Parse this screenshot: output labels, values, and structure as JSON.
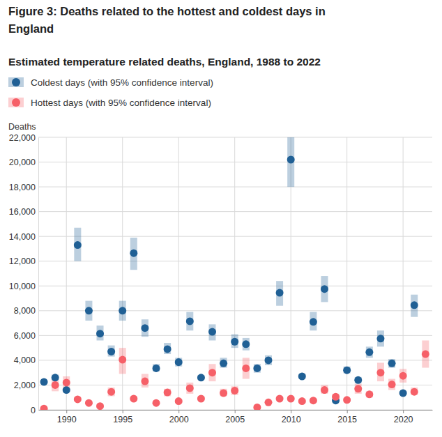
{
  "chart_data": {
    "type": "scatter",
    "title": "Figure 3: Deaths related to the hottest and coldest days in England",
    "subtitle": "Estimated temperature related deaths, England, 1988 to 2022",
    "y_label": "Deaths",
    "x": [
      1988,
      1989,
      1990,
      1991,
      1992,
      1993,
      1994,
      1995,
      1996,
      1997,
      1998,
      1999,
      2000,
      2001,
      2002,
      2003,
      2004,
      2005,
      2006,
      2007,
      2008,
      2009,
      2010,
      2011,
      2012,
      2013,
      2014,
      2015,
      2016,
      2017,
      2018,
      2019,
      2020,
      2021,
      2022
    ],
    "xlim": [
      1987.5,
      2022.6
    ],
    "xticks": [
      1990,
      1995,
      2000,
      2005,
      2010,
      2015,
      2020
    ],
    "ylim": [
      0,
      22000
    ],
    "yticks": [
      0,
      {
        "value": 2000,
        "label": "2,000"
      },
      {
        "value": 4000,
        "label": "4,000"
      },
      {
        "value": 6000,
        "label": "6,000"
      },
      {
        "value": 8000,
        "label": "8,000"
      },
      {
        "value": 10000,
        "label": "10,000"
      },
      {
        "value": 12000,
        "label": "12,000"
      },
      {
        "value": 14000,
        "label": "14,000"
      },
      {
        "value": 16000,
        "label": "16,000"
      },
      {
        "value": 18000,
        "label": "18,000"
      },
      {
        "value": 20000,
        "label": "20,000"
      },
      {
        "value": 22000,
        "label": "22,000"
      }
    ],
    "grid": true,
    "series": [
      {
        "name": "Coldest days (with 95% confidence interval)",
        "color": "#206095",
        "marker": "circle",
        "values": [
          2250,
          2600,
          1600,
          13300,
          8000,
          6150,
          4700,
          8000,
          12650,
          6600,
          3350,
          4900,
          3850,
          7150,
          2600,
          6300,
          3750,
          5500,
          5300,
          3350,
          4000,
          9450,
          20200,
          2700,
          7100,
          9750,
          750,
          3200,
          2400,
          4650,
          5750,
          3750,
          1350,
          8450,
          null
        ],
        "ci_low": [
          2100,
          2400,
          1450,
          12000,
          7200,
          5600,
          4300,
          7200,
          11300,
          5900,
          3100,
          4500,
          3500,
          6400,
          2450,
          5600,
          3400,
          5000,
          4800,
          3000,
          3600,
          8400,
          18000,
          2500,
          6400,
          8700,
          650,
          2950,
          2150,
          4200,
          5100,
          3400,
          1200,
          7500,
          null
        ],
        "ci_high": [
          2400,
          2850,
          1750,
          14700,
          8800,
          6800,
          5200,
          8800,
          13900,
          7300,
          3700,
          5400,
          4200,
          7900,
          2800,
          6900,
          4200,
          6100,
          5800,
          3700,
          4400,
          10400,
          22200,
          2900,
          7900,
          10800,
          900,
          3500,
          2650,
          5100,
          6400,
          4100,
          1500,
          9300,
          null
        ]
      },
      {
        "name": "Hottest days (with 95% confidence interval)",
        "color": "#f66068",
        "marker": "circle",
        "values": [
          100,
          2000,
          2200,
          850,
          550,
          300,
          1450,
          4050,
          900,
          2300,
          550,
          1400,
          700,
          1750,
          900,
          3000,
          1350,
          1550,
          3350,
          200,
          600,
          900,
          900,
          700,
          750,
          1600,
          1050,
          800,
          1700,
          1250,
          3000,
          2050,
          2750,
          1450,
          4500
        ],
        "ci_low": [
          50,
          1500,
          1700,
          700,
          450,
          200,
          1100,
          2900,
          750,
          1800,
          450,
          1100,
          550,
          1300,
          750,
          2300,
          1100,
          1200,
          2500,
          150,
          500,
          750,
          750,
          550,
          600,
          1300,
          800,
          650,
          1300,
          1000,
          2300,
          1600,
          2200,
          1200,
          3400
        ],
        "ci_high": [
          150,
          2500,
          2700,
          1000,
          650,
          400,
          1800,
          5000,
          1050,
          2900,
          650,
          1700,
          850,
          2200,
          1050,
          3700,
          1700,
          1900,
          4200,
          250,
          700,
          1050,
          1050,
          850,
          900,
          2000,
          1300,
          950,
          2100,
          1500,
          3800,
          2500,
          3300,
          1800,
          5600
        ]
      }
    ]
  }
}
